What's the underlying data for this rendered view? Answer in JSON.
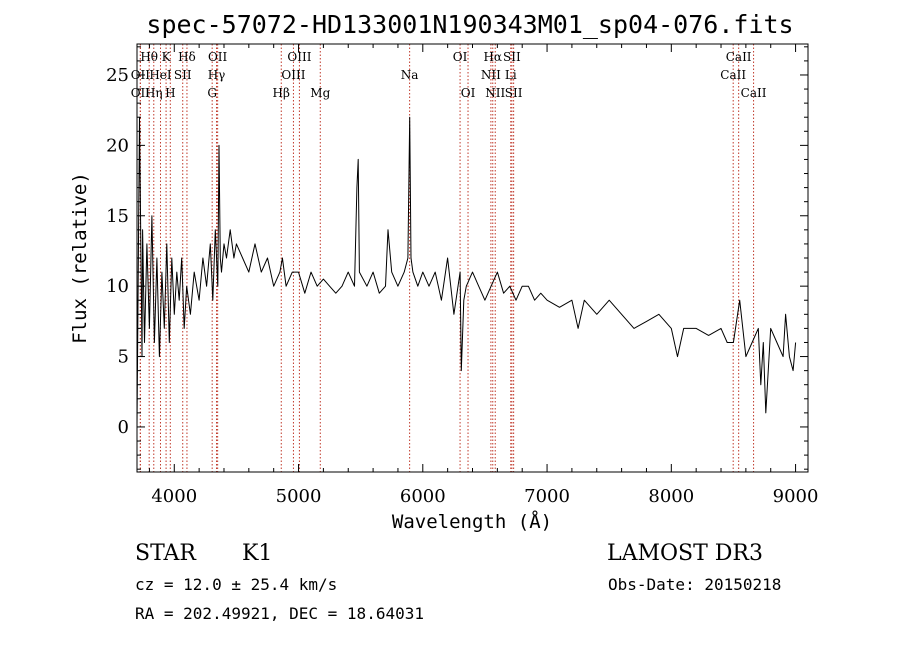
{
  "chart_data": {
    "type": "line",
    "title": "spec-57072-HD133001N190343M01_sp04-076.fits",
    "xlabel": "Wavelength (Å)",
    "ylabel": "Flux (relative)",
    "xlim": [
      3700,
      9100
    ],
    "ylim": [
      -3.2,
      27.2
    ],
    "x_ticks": [
      4000,
      5000,
      6000,
      7000,
      8000,
      9000
    ],
    "y_ticks": [
      0,
      5,
      10,
      15,
      20,
      25
    ],
    "series": [
      {
        "name": "spectrum",
        "x": [
          3700,
          3720,
          3740,
          3745,
          3760,
          3780,
          3800,
          3820,
          3840,
          3860,
          3880,
          3900,
          3920,
          3940,
          3960,
          3980,
          4000,
          4020,
          4040,
          4060,
          4080,
          4100,
          4130,
          4160,
          4200,
          4230,
          4260,
          4290,
          4310,
          4330,
          4350,
          4360,
          4370,
          4380,
          4400,
          4420,
          4450,
          4480,
          4500,
          4550,
          4600,
          4650,
          4700,
          4750,
          4800,
          4850,
          4870,
          4900,
          4950,
          5000,
          5050,
          5100,
          5150,
          5200,
          5250,
          5300,
          5350,
          5400,
          5450,
          5470,
          5480,
          5490,
          5550,
          5600,
          5650,
          5700,
          5720,
          5750,
          5800,
          5850,
          5880,
          5895,
          5905,
          5920,
          5960,
          6000,
          6050,
          6100,
          6150,
          6200,
          6250,
          6300,
          6310,
          6330,
          6350,
          6400,
          6450,
          6500,
          6550,
          6600,
          6650,
          6700,
          6750,
          6800,
          6850,
          6900,
          6950,
          7000,
          7100,
          7200,
          7250,
          7300,
          7400,
          7500,
          7600,
          7700,
          7800,
          7900,
          8000,
          8050,
          8100,
          8200,
          8300,
          8400,
          8450,
          8500,
          8550,
          8600,
          8650,
          8700,
          8720,
          8740,
          8760,
          8800,
          8850,
          8900,
          8920,
          8950,
          8980,
          9000
        ],
        "y": [
          0,
          22,
          5,
          14,
          6,
          13,
          7,
          15,
          6,
          12,
          5,
          11,
          7,
          13,
          6,
          12,
          8,
          11,
          9,
          12,
          7,
          10,
          8,
          11,
          9,
          12,
          10,
          13,
          9,
          14,
          10,
          20,
          12,
          11,
          13,
          12,
          14,
          12,
          13,
          12,
          11,
          13,
          11,
          12,
          10,
          11,
          12,
          10,
          11,
          11,
          9.5,
          11,
          10,
          10.5,
          10,
          9.5,
          10,
          11,
          10,
          17,
          19,
          11,
          10,
          11,
          9.5,
          10,
          14,
          11,
          10,
          11,
          12,
          22,
          12,
          11,
          10,
          11,
          10,
          11,
          9,
          12,
          8,
          11,
          4,
          9,
          10,
          11,
          10,
          9,
          10,
          11,
          9.5,
          10,
          9,
          10,
          10,
          9,
          9.5,
          9,
          8.5,
          9,
          7,
          9,
          8,
          9,
          8,
          7,
          7.5,
          8,
          7,
          5,
          7,
          7,
          6.5,
          7,
          6,
          6,
          9,
          5,
          6,
          7,
          3,
          6,
          1,
          7,
          6,
          5,
          8,
          5,
          4,
          6
        ]
      }
    ],
    "line_markers": [
      {
        "name": "Hθ",
        "wavelength": 3798,
        "row": 0
      },
      {
        "name": "OII",
        "wavelength": 3727,
        "row": 1
      },
      {
        "name": "OII",
        "wavelength": 3727,
        "row": 2
      },
      {
        "name": "K",
        "wavelength": 3934,
        "row": 0
      },
      {
        "name": "HeI",
        "wavelength": 3889,
        "row": 1
      },
      {
        "name": "Hη",
        "wavelength": 3835,
        "row": 2
      },
      {
        "name": "Hδ",
        "wavelength": 4102,
        "row": 0
      },
      {
        "name": "SII",
        "wavelength": 4068,
        "row": 1
      },
      {
        "name": "H",
        "wavelength": 3968,
        "row": 2
      },
      {
        "name": "OII",
        "wavelength": 4349,
        "row": 0
      },
      {
        "name": "Hγ",
        "wavelength": 4340,
        "row": 1
      },
      {
        "name": "G",
        "wavelength": 4305,
        "row": 2
      },
      {
        "name": "OIII",
        "wavelength": 5007,
        "row": 0
      },
      {
        "name": "OIII",
        "wavelength": 4959,
        "row": 1
      },
      {
        "name": "Hβ",
        "wavelength": 4861,
        "row": 2
      },
      {
        "name": "Mg",
        "wavelength": 5175,
        "row": 2
      },
      {
        "name": "Na",
        "wavelength": 5894,
        "row": 1
      },
      {
        "name": "OI",
        "wavelength": 6300,
        "row": 0
      },
      {
        "name": "OI",
        "wavelength": 6364,
        "row": 2
      },
      {
        "name": "Hα",
        "wavelength": 6563,
        "row": 0
      },
      {
        "name": "SII",
        "wavelength": 6717,
        "row": 0
      },
      {
        "name": "NII",
        "wavelength": 6548,
        "row": 1
      },
      {
        "name": "Li",
        "wavelength": 6708,
        "row": 1
      },
      {
        "name": "NII",
        "wavelength": 6583,
        "row": 2
      },
      {
        "name": "SII",
        "wavelength": 6731,
        "row": 2
      },
      {
        "name": "CaII",
        "wavelength": 8542,
        "row": 0
      },
      {
        "name": "CaII",
        "wavelength": 8498,
        "row": 1
      },
      {
        "name": "CaII",
        "wavelength": 8662,
        "row": 2
      }
    ],
    "marker_color": "#c0392b"
  },
  "info": {
    "class_label": "STAR",
    "subclass": "K1",
    "survey": "LAMOST DR3",
    "cz": "cz = 12.0 ± 25.4 km/s",
    "obs_date": "Obs-Date: 20150218",
    "coords": "RA = 202.49921, DEC =  18.64031"
  }
}
